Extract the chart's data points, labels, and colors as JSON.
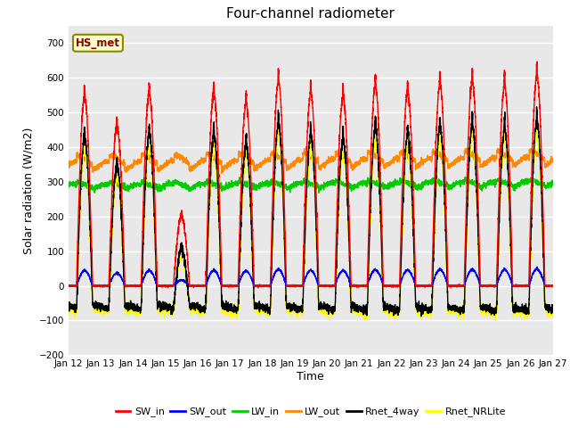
{
  "title": "Four-channel radiometer",
  "xlabel": "Time",
  "ylabel": "Solar radiation (W/m2)",
  "ylim": [
    -200,
    750
  ],
  "yticks": [
    -200,
    -100,
    0,
    100,
    200,
    300,
    400,
    500,
    600,
    700
  ],
  "annotation": "HS_met",
  "colors": {
    "SW_in": "#ff0000",
    "SW_out": "#0000ff",
    "LW_in": "#00cc00",
    "LW_out": "#ff8800",
    "Rnet_4way": "#000000",
    "Rnet_NRLite": "#ffff00"
  },
  "linewidths": {
    "SW_in": 1.0,
    "SW_out": 1.0,
    "LW_in": 1.0,
    "LW_out": 1.0,
    "Rnet_4way": 1.0,
    "Rnet_NRLite": 1.0
  },
  "n_days": 15,
  "pts_per_day": 288,
  "day_labels": [
    "Jan 12",
    "Jan 13",
    "Jan 14",
    "Jan 15",
    "Jan 16",
    "Jan 17",
    "Jan 18",
    "Jan 19",
    "Jan 20",
    "Jan 21",
    "Jan 22",
    "Jan 23",
    "Jan 24",
    "Jan 25",
    "Jan 26",
    "Jan 27"
  ],
  "sw_peaks": [
    545,
    460,
    555,
    200,
    555,
    525,
    590,
    555,
    545,
    575,
    560,
    580,
    590,
    580,
    605
  ],
  "lw_in_base": 285,
  "lw_out_base": 345
}
